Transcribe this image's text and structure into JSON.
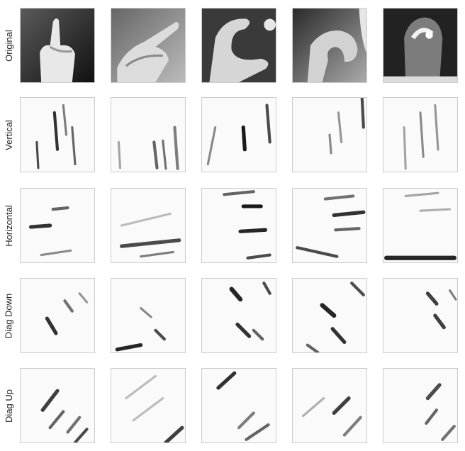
{
  "figure": {
    "row_labels": [
      "Original",
      "Vertical",
      "Horizontal",
      "Diag Down",
      "Diag Up"
    ],
    "columns": 5,
    "colors": {
      "background": "#ffffff",
      "tile_border": "#cccccc",
      "ink": "#000000",
      "label_text": "#262626"
    },
    "panel_content": "grayscale hand-sign images and edge-filter responses",
    "icons": [
      "hand-image"
    ]
  }
}
